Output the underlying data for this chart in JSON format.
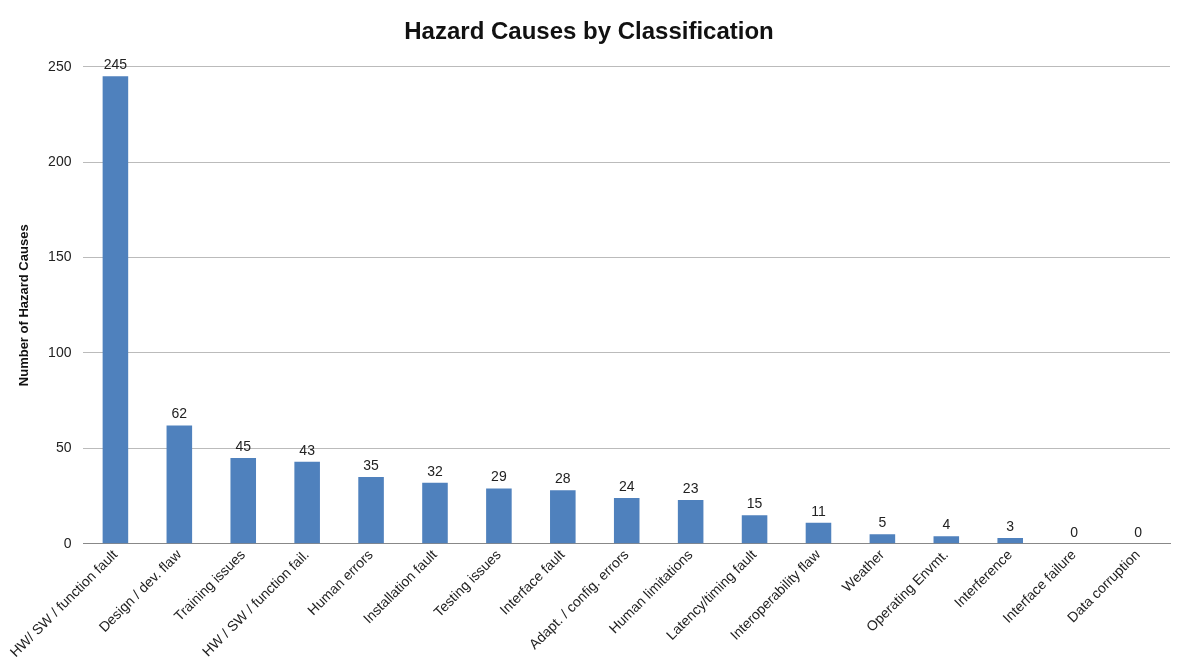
{
  "chart_data": {
    "type": "bar",
    "title": "Hazard Causes by Classification",
    "ylabel": "Number of Hazard Causes",
    "categories": [
      "HW/ SW / function fault",
      "Design / dev. flaw",
      "Training issues",
      "HW / SW / function fail.",
      "Human errors",
      "Installation fault",
      "Testing issues",
      "Interface fault",
      "Adapt. / config. errors",
      "Human limitations",
      "Latency/timing fault",
      "Interoperability flaw",
      "Weather",
      "Operating Envmt.",
      "Interference",
      "Interface failure",
      "Data corruption"
    ],
    "values": [
      245,
      62,
      45,
      43,
      35,
      32,
      29,
      28,
      24,
      23,
      15,
      11,
      5,
      4,
      3,
      0,
      0
    ],
    "color": "#4f81bd",
    "ylim": [
      0,
      250
    ],
    "yticks": [
      0,
      50,
      100,
      150,
      200,
      250
    ],
    "grid": "y",
    "data_labels": true,
    "legend": false
  }
}
